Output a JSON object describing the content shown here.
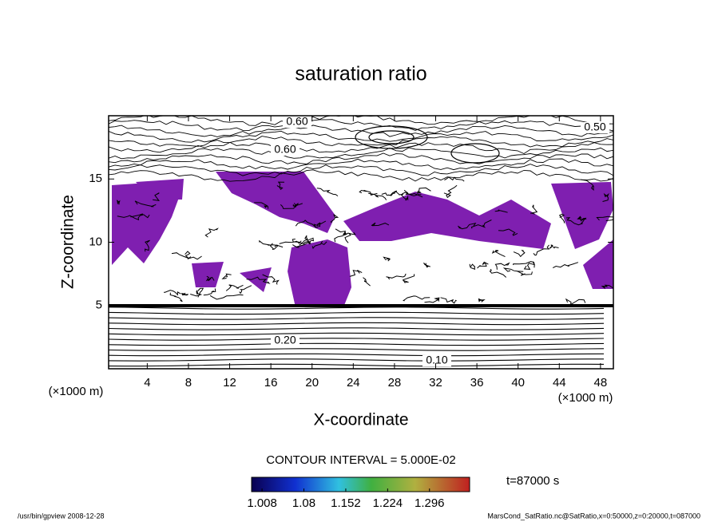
{
  "chart_data": {
    "type": "contour",
    "title": "saturation ratio",
    "x_label": "X-coordinate",
    "y_label": "Z-coordinate",
    "x_unit": "(×1000 m)",
    "y_unit": "(×1000 m)",
    "xlim": [
      0.25,
      49.25
    ],
    "xticks": [
      4,
      8,
      12,
      16,
      20,
      24,
      28,
      32,
      36,
      40,
      44,
      48
    ],
    "ylim": [
      0,
      20
    ],
    "yticks": [
      5,
      10,
      15
    ],
    "fill_color": "#7f1fb0",
    "contour_labels": [
      {
        "value": 0.1,
        "label": "0.10"
      },
      {
        "value": 0.2,
        "label": "0.20"
      },
      {
        "value": 0.6,
        "label": "0.60"
      },
      {
        "value": 0.6,
        "label": "0.60"
      },
      {
        "value": 0.5,
        "label": "0.50"
      }
    ],
    "contour_interval": "CONTOUR INTERVAL = 5.000E-02",
    "colorbar": {
      "lim": [
        0.99,
        1.365
      ],
      "ticks": [
        1.008,
        1.08,
        1.152,
        1.224,
        1.296
      ]
    },
    "time_label": "t=87000 s",
    "footer_left": "/usr/bin/gpview  2008-12-28",
    "footer_right": "MarsCond_SatRatio.nc@SatRatio,x=0:50000,z=0:20000,t=087000"
  }
}
